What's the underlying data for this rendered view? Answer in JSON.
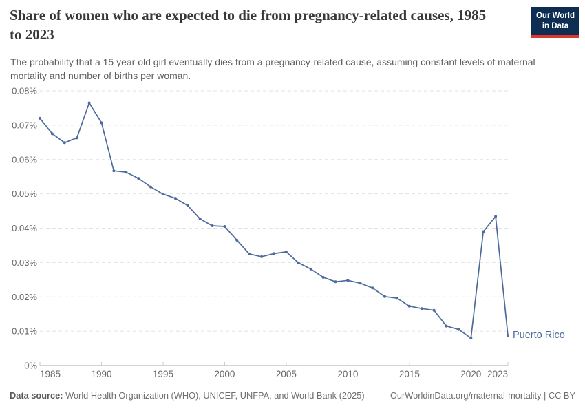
{
  "header": {
    "title": "Share of women who are expected to die from pregnancy-related causes, 1985 to 2023",
    "subtitle": "The probability that a 15 year old girl eventually dies from a pregnancy-related cause, assuming constant levels of maternal mortality and number of births per woman.",
    "logo": {
      "line1": "Our World",
      "line2": "in Data",
      "bg_color": "#0d2e52",
      "accent_color": "#dc3830"
    }
  },
  "chart_data": {
    "type": "line",
    "title": "Share of women who are expected to die from pregnancy-related causes, 1985 to 2023",
    "xlabel": "",
    "ylabel": "",
    "unit": "%",
    "xlim": [
      1985,
      2023
    ],
    "ylim": [
      0,
      0.08
    ],
    "grid": "horizontal-dashed",
    "legend_position": "end-of-line-label",
    "xticks": [
      1985,
      1990,
      1995,
      2000,
      2005,
      2010,
      2015,
      2020,
      2023
    ],
    "yticks": [
      {
        "value": 0,
        "label": "0%"
      },
      {
        "value": 0.01,
        "label": "0.01%"
      },
      {
        "value": 0.02,
        "label": "0.02%"
      },
      {
        "value": 0.03,
        "label": "0.03%"
      },
      {
        "value": 0.04,
        "label": "0.04%"
      },
      {
        "value": 0.05,
        "label": "0.05%"
      },
      {
        "value": 0.06,
        "label": "0.06%"
      },
      {
        "value": 0.07,
        "label": "0.07%"
      },
      {
        "value": 0.08,
        "label": "0.08%"
      }
    ],
    "x": [
      1985,
      1986,
      1987,
      1988,
      1989,
      1990,
      1991,
      1992,
      1993,
      1994,
      1995,
      1996,
      1997,
      1998,
      1999,
      2000,
      2001,
      2002,
      2003,
      2004,
      2005,
      2006,
      2007,
      2008,
      2009,
      2010,
      2011,
      2012,
      2013,
      2014,
      2015,
      2016,
      2017,
      2018,
      2019,
      2020,
      2021,
      2022,
      2023
    ],
    "series": [
      {
        "name": "Puerto Rico",
        "color": "#4C6A9C",
        "values": [
          0.072,
          0.0675,
          0.0649,
          0.0663,
          0.0765,
          0.0707,
          0.0567,
          0.0563,
          0.0545,
          0.052,
          0.0499,
          0.0487,
          0.0466,
          0.0427,
          0.0407,
          0.0405,
          0.0365,
          0.0325,
          0.0317,
          0.0326,
          0.0331,
          0.0299,
          0.0281,
          0.0257,
          0.0244,
          0.0248,
          0.024,
          0.0226,
          0.0201,
          0.0196,
          0.0173,
          0.0166,
          0.0161,
          0.0115,
          0.0105,
          0.008,
          0.039,
          0.0434,
          0.0087
        ]
      }
    ],
    "axis_color": "#a8a8a8",
    "tick_color": "#c9c9c9",
    "grid_color": "#e2e2e2"
  },
  "footer": {
    "datasource_label": "Data source:",
    "datasource_text": "World Health Organization (WHO), UNICEF, UNFPA, and World Bank (2025)",
    "link_text": "OurWorldinData.org/maternal-mortality | CC BY"
  }
}
